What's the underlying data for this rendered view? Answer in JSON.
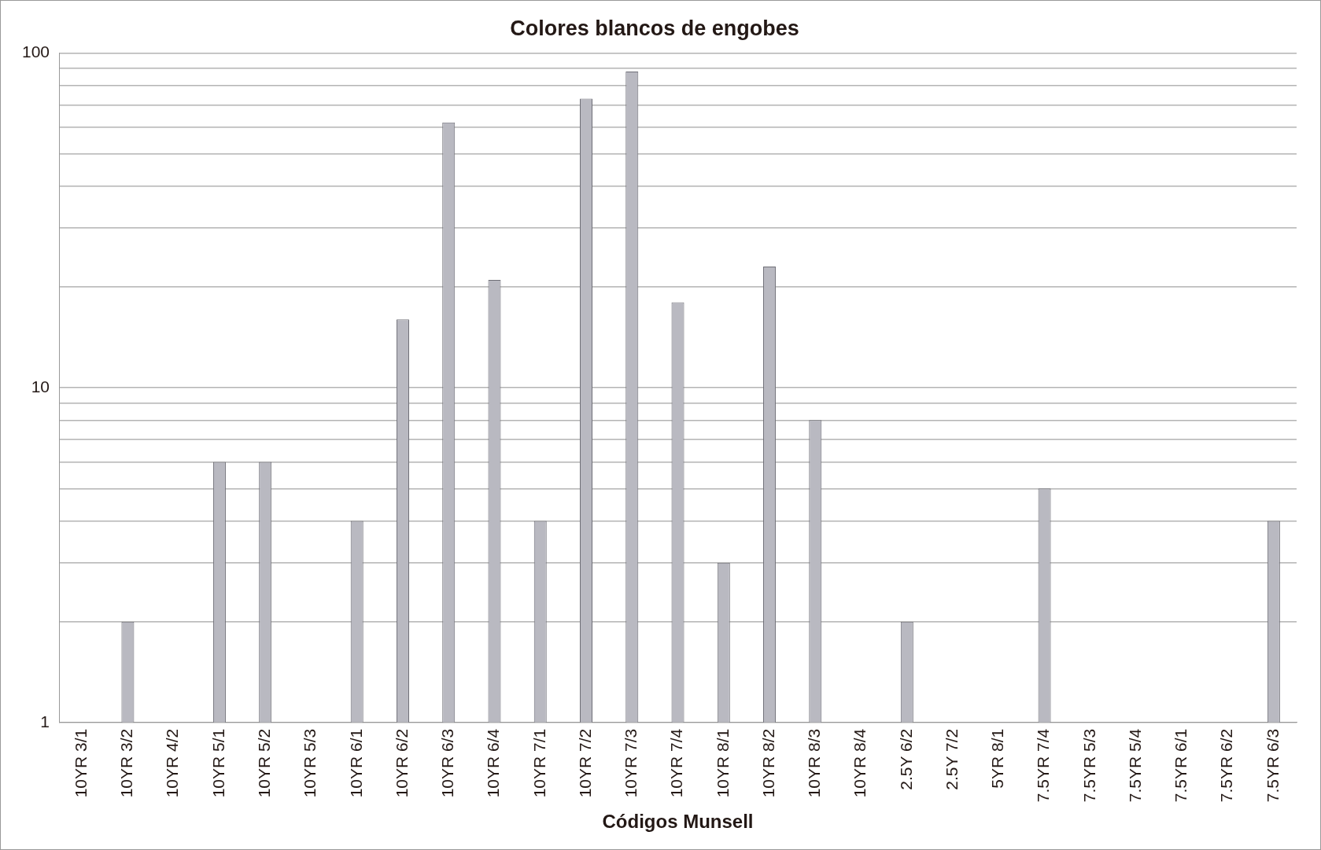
{
  "chart_data": {
    "type": "bar",
    "title": "Colores blancos de engobes",
    "xlabel": "Códigos Munsell",
    "categories": [
      "10YR 3/1",
      "10YR 3/2",
      "10YR 4/2",
      "10YR 5/1",
      "10YR 5/2",
      "10YR 5/3",
      "10YR 6/1",
      "10YR 6/2",
      "10YR 6/3",
      "10YR 6/4",
      "10YR 7/1",
      "10YR 7/2",
      "10YR 7/3",
      "10YR 7/4",
      "10YR 8/1",
      "10YR 8/2",
      "10YR 8/3",
      "10YR 8/4",
      "2.5Y 6/2",
      "2.5Y 7/2",
      "5YR 8/1",
      "7.5YR 7/4",
      "7.5YR 5/3",
      "7.5YR 5/4",
      "7.5YR 6/1",
      "7.5YR 6/2",
      "7.5YR 6/3"
    ],
    "values": [
      1,
      2,
      1,
      6,
      6,
      1,
      4,
      16,
      62,
      21,
      4,
      73,
      88,
      18,
      3,
      23,
      8,
      1,
      2,
      1,
      1,
      5,
      1,
      1,
      1,
      1,
      4
    ],
    "color": "#b9b9c1",
    "log": "y",
    "ylim": [
      1,
      100
    ],
    "yticks": [
      1,
      {
        "value": 2,
        "label": null
      },
      {
        "value": 3,
        "label": null
      },
      {
        "value": 4,
        "label": null
      },
      {
        "value": 5,
        "label": null
      },
      {
        "value": 6,
        "label": null
      },
      {
        "value": 7,
        "label": null
      },
      {
        "value": 8,
        "label": null
      },
      {
        "value": 9,
        "label": null
      },
      10,
      {
        "value": 20,
        "label": null
      },
      {
        "value": 30,
        "label": null
      },
      {
        "value": 40,
        "label": null
      },
      {
        "value": 50,
        "label": null
      },
      {
        "value": 60,
        "label": null
      },
      {
        "value": 70,
        "label": null
      },
      {
        "value": 80,
        "label": null
      },
      {
        "value": 90,
        "label": null
      },
      100
    ],
    "grid": "y",
    "legend": false
  }
}
